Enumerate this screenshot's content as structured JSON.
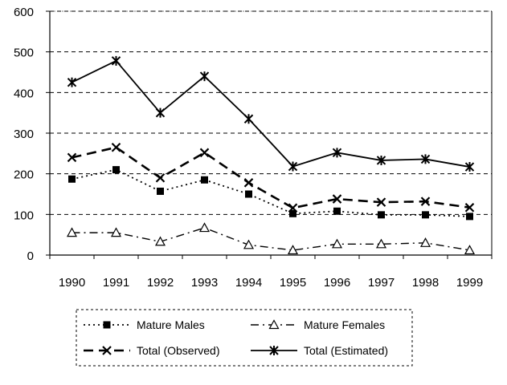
{
  "chart_data": {
    "type": "line",
    "title": "",
    "xlabel": "",
    "ylabel": "",
    "x": [
      "1990",
      "1991",
      "1992",
      "1993",
      "1994",
      "1995",
      "1996",
      "1997",
      "1998",
      "1999"
    ],
    "ylim": [
      0,
      600
    ],
    "yticks": [
      "0",
      "100",
      "200",
      "300",
      "400",
      "500",
      "600"
    ],
    "grid": "horizontal dashed",
    "legend_position": "bottom",
    "series": [
      {
        "name": "Mature Males",
        "values": [
          187,
          210,
          157,
          185,
          150,
          102,
          108,
          99,
          99,
          95
        ],
        "line": "dotted",
        "marker": "filled-square"
      },
      {
        "name": "Mature Females",
        "values": [
          55,
          55,
          33,
          67,
          25,
          12,
          27,
          27,
          30,
          12
        ],
        "line": "dash-dot",
        "marker": "open-triangle"
      },
      {
        "name": "Total (Observed)",
        "values": [
          240,
          265,
          190,
          252,
          178,
          116,
          138,
          130,
          132,
          117
        ],
        "line": "dashed",
        "marker": "x"
      },
      {
        "name": "Total (Estimated)",
        "values": [
          425,
          478,
          350,
          440,
          335,
          218,
          252,
          233,
          236,
          217
        ],
        "line": "solid",
        "marker": "asterisk"
      }
    ]
  }
}
